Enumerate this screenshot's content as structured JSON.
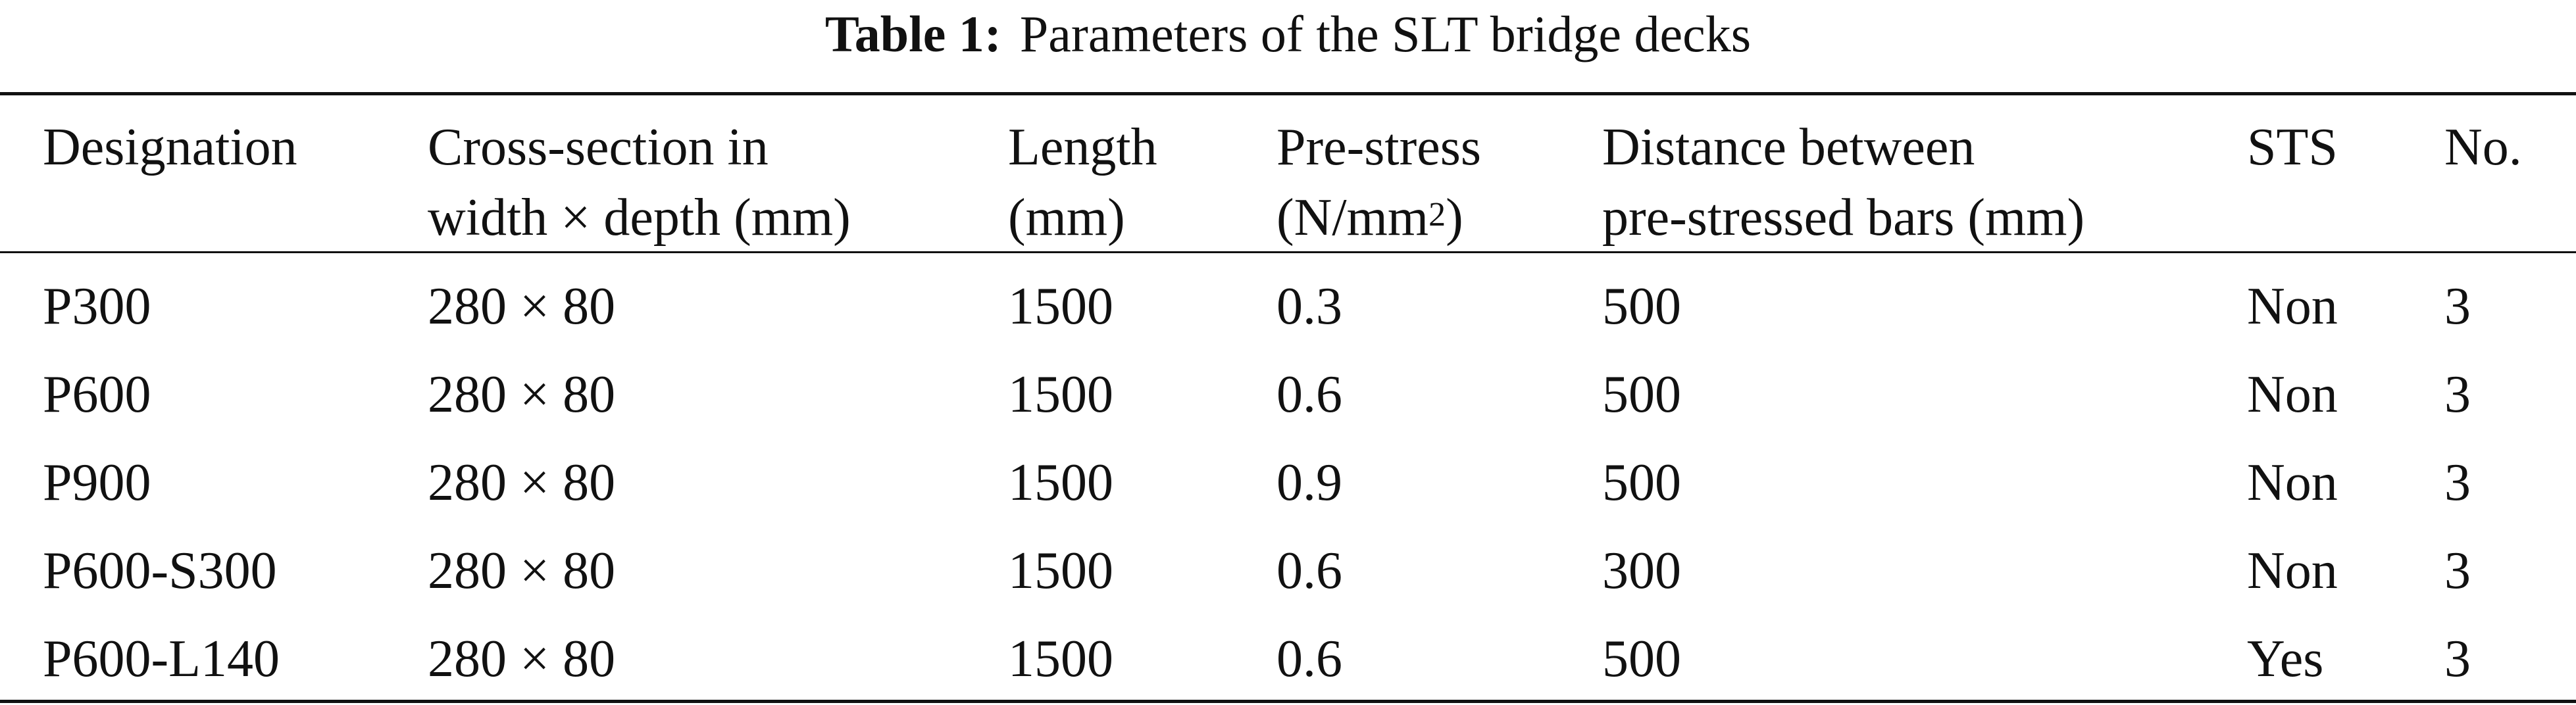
{
  "caption": {
    "label": "Table 1:",
    "text": "Parameters of the SLT bridge decks"
  },
  "table": {
    "headers": {
      "designation": "Designation",
      "cross_section_line1": "Cross-section in",
      "cross_section_line2": "width × depth (mm)",
      "length_line1": "Length",
      "length_line2": "(mm)",
      "prestress_line1": "Pre-stress",
      "prestress_line2": "(N/mm",
      "prestress_sup": "2",
      "prestress_close": ")",
      "distance_line1": "Distance between",
      "distance_line2": "pre-stressed bars (mm)",
      "sts": "STS",
      "no": "No."
    },
    "rows": [
      {
        "designation": "P300",
        "cross_section": "280 × 80",
        "length": "1500",
        "prestress": "0.3",
        "distance": "500",
        "sts": "Non",
        "no": "3"
      },
      {
        "designation": "P600",
        "cross_section": "280 × 80",
        "length": "1500",
        "prestress": "0.6",
        "distance": "500",
        "sts": "Non",
        "no": "3"
      },
      {
        "designation": "P900",
        "cross_section": "280 × 80",
        "length": "1500",
        "prestress": "0.9",
        "distance": "500",
        "sts": "Non",
        "no": "3"
      },
      {
        "designation": "P600-S300",
        "cross_section": "280 × 80",
        "length": "1500",
        "prestress": "0.6",
        "distance": "300",
        "sts": "Non",
        "no": "3"
      },
      {
        "designation": "P600-L140",
        "cross_section": "280 × 80",
        "length": "1500",
        "prestress": "0.6",
        "distance": "500",
        "sts": "Yes",
        "no": "3"
      }
    ]
  }
}
